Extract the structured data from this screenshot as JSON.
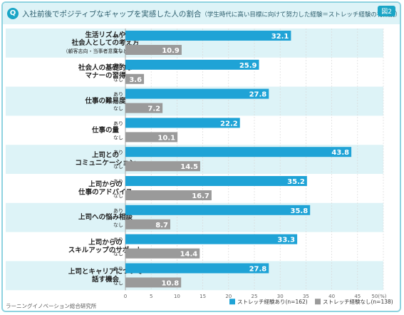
{
  "title": "入社前後でポジティブなギャップを実感した人の割合",
  "title_note": "（学生時代に高い目標に向けて努力した経験＝ストレッチ経験の有無別）",
  "question_badge": "Q",
  "figure_badge": "図2",
  "source": "ラーニングイノベーション総合研究所",
  "colors": {
    "with": "#1fa3d6",
    "without": "#9a9a9a",
    "band": "#ddf3f7",
    "grid": "#d9d9d9"
  },
  "chart_data": {
    "type": "bar",
    "orientation": "horizontal",
    "categories": [
      [
        "生活リズムや",
        "社会人としての考え方"
      ],
      [
        "社会人の基礎的な",
        "マナーの習得"
      ],
      [
        "仕事の難易度"
      ],
      [
        "仕事の量"
      ],
      [
        "上司との",
        "コミュニケーション"
      ],
      [
        "上司からの",
        "仕事のアドバイス"
      ],
      [
        "上司への悩み相談"
      ],
      [
        "上司からの",
        "スキルアップのサポート"
      ],
      [
        "上司とキャリアについて",
        "話す機会"
      ]
    ],
    "category_notes": [
      "（顧客志向・当事者意識など）の習得",
      "",
      "",
      "",
      "",
      "",
      "",
      "",
      ""
    ],
    "bar_tags": [
      "あり",
      "なし"
    ],
    "series": [
      {
        "name": "ストレッチ経験あり",
        "n": "(n=162)",
        "values": [
          32.1,
          25.9,
          27.8,
          22.2,
          43.8,
          35.2,
          35.8,
          33.3,
          27.8
        ]
      },
      {
        "name": "ストレッチ経験なし",
        "n": "(n=138)",
        "values": [
          10.9,
          3.6,
          7.2,
          10.1,
          14.5,
          16.7,
          8.7,
          14.4,
          10.8
        ]
      }
    ],
    "x_ticks": [
      "0",
      "5",
      "10",
      "15",
      "20",
      "25",
      "30",
      "35",
      "40",
      "45",
      "50(%)"
    ],
    "xlim": [
      0,
      50
    ],
    "grid": true,
    "legend_position": "bottom-right"
  }
}
